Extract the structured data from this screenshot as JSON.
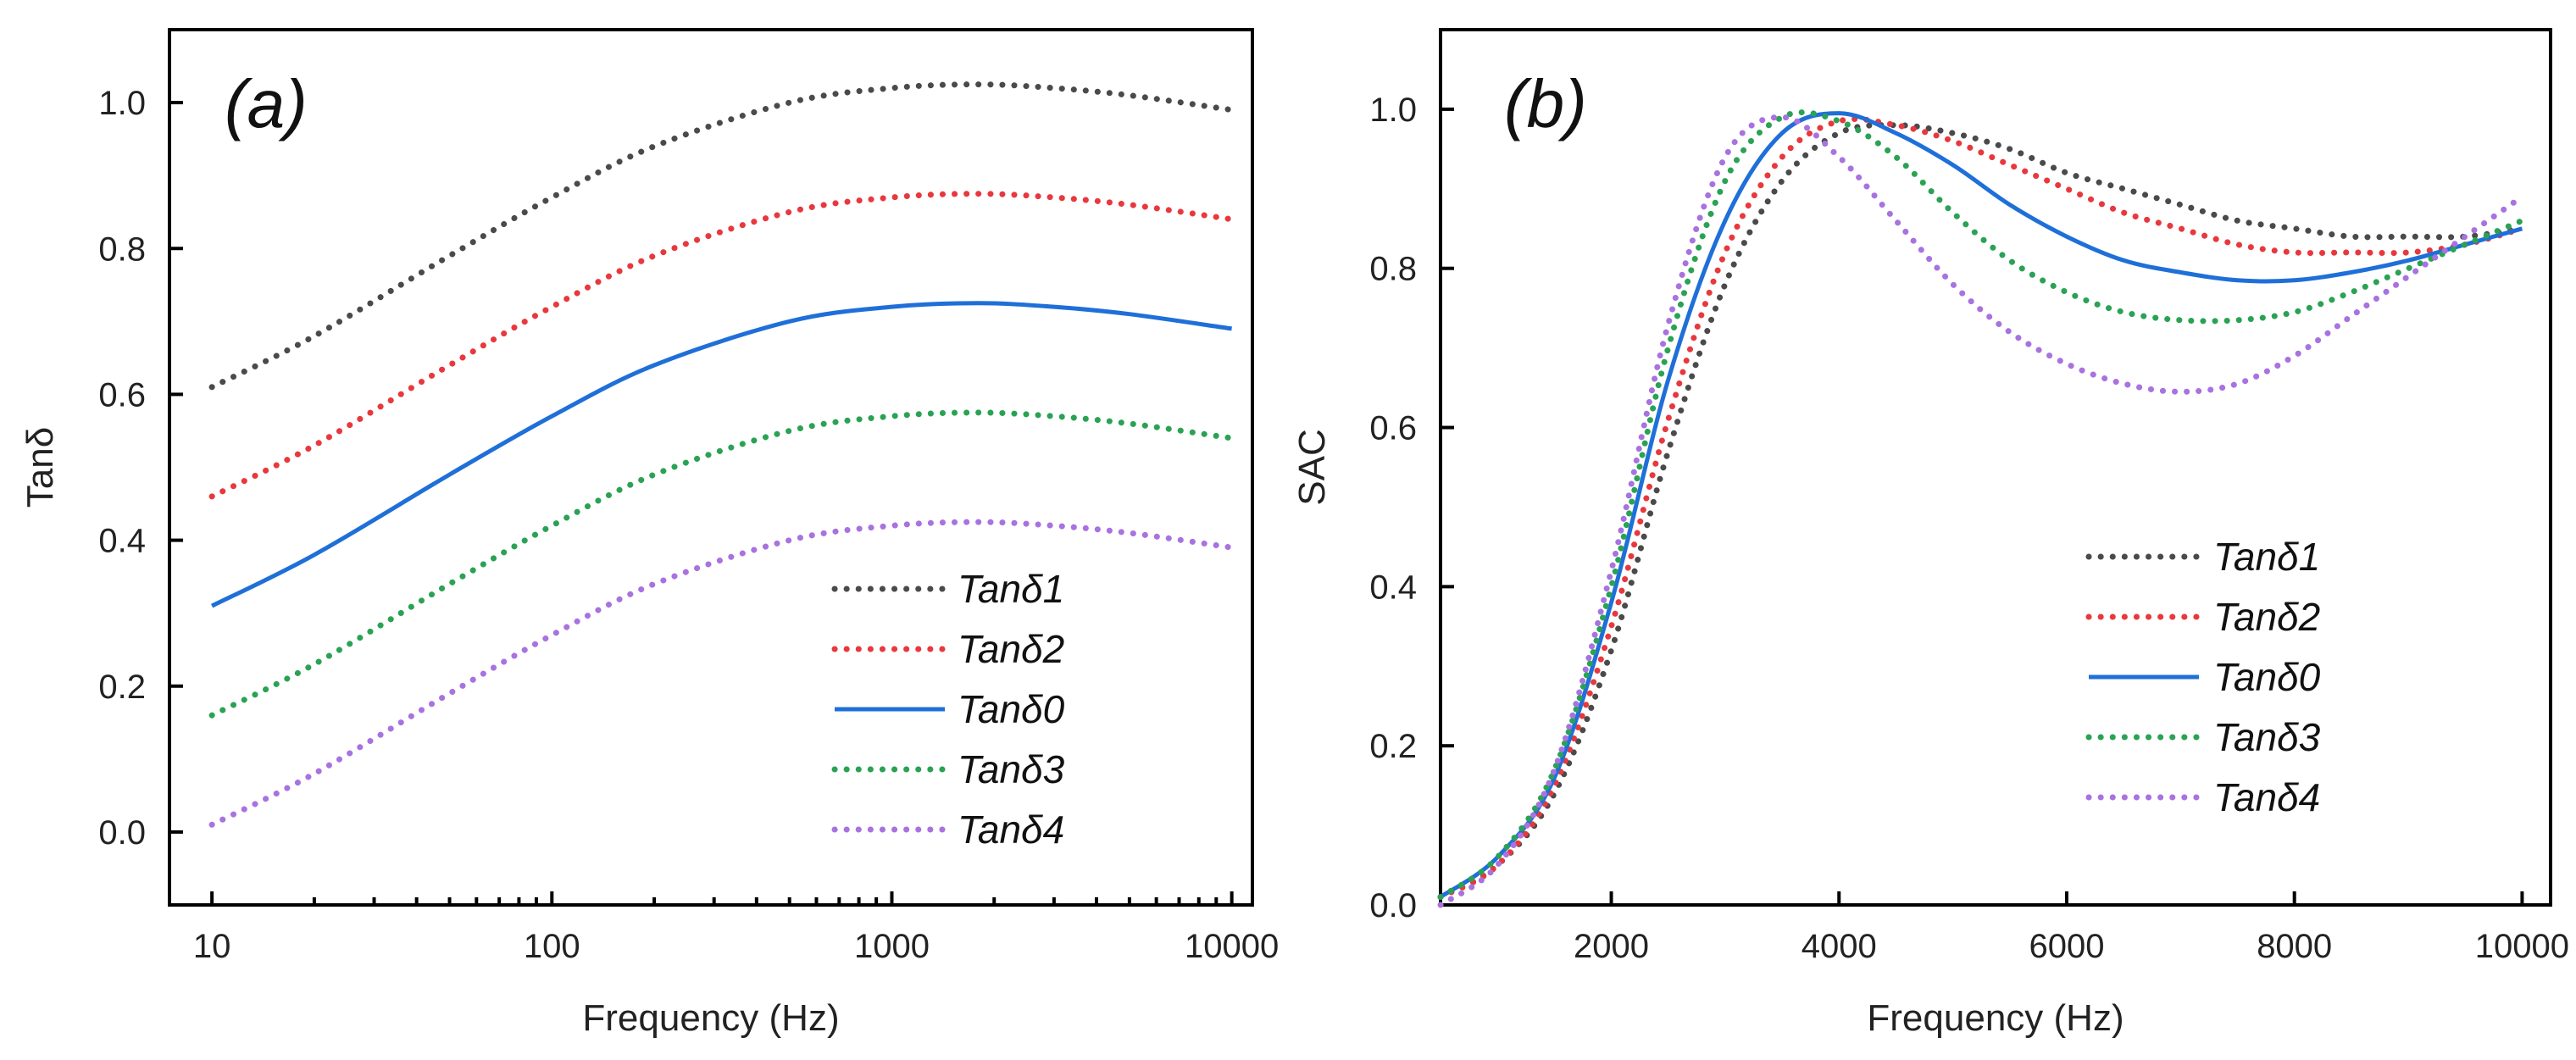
{
  "chart_data": [
    {
      "type": "line",
      "panel_label": "(a)",
      "xlabel": "Frequency (Hz)",
      "ylabel": "Tanδ",
      "xscale": "log",
      "xlim": [
        7.5,
        11500
      ],
      "ylim": [
        -0.1,
        1.1
      ],
      "xticks": [
        10,
        100,
        1000,
        10000
      ],
      "xtick_labels": [
        "10",
        "100",
        "1000",
        "10000"
      ],
      "yticks": [
        0.0,
        0.2,
        0.4,
        0.6,
        0.8,
        1.0
      ],
      "ytick_labels": [
        "0.0",
        "0.2",
        "0.4",
        "0.6",
        "0.8",
        "1.0"
      ],
      "grid": false,
      "legend_position": "bottom-right",
      "series": [
        {
          "name": "Tanδ1",
          "color": "#4a4a4a",
          "style": "dotted",
          "x": [
            10,
            20,
            50,
            100,
            200,
            500,
            1000,
            1800,
            3000,
            5000,
            10000
          ],
          "y": [
            0.61,
            0.68,
            0.79,
            0.87,
            0.94,
            1.0,
            1.02,
            1.025,
            1.02,
            1.01,
            0.99
          ]
        },
        {
          "name": "Tanδ2",
          "color": "#e8383d",
          "style": "dotted",
          "x": [
            10,
            20,
            50,
            100,
            200,
            500,
            1000,
            1800,
            3000,
            5000,
            10000
          ],
          "y": [
            0.46,
            0.53,
            0.64,
            0.72,
            0.79,
            0.85,
            0.87,
            0.875,
            0.87,
            0.86,
            0.84
          ]
        },
        {
          "name": "Tanδ0",
          "color": "#1f6fd9",
          "style": "solid",
          "x": [
            10,
            20,
            50,
            100,
            200,
            500,
            1000,
            1800,
            3000,
            5000,
            10000
          ],
          "y": [
            0.31,
            0.38,
            0.49,
            0.57,
            0.64,
            0.7,
            0.72,
            0.725,
            0.72,
            0.71,
            0.69
          ]
        },
        {
          "name": "Tanδ3",
          "color": "#2aa254",
          "style": "dotted",
          "x": [
            10,
            20,
            50,
            100,
            200,
            500,
            1000,
            1800,
            3000,
            5000,
            10000
          ],
          "y": [
            0.16,
            0.23,
            0.34,
            0.42,
            0.49,
            0.55,
            0.57,
            0.575,
            0.57,
            0.56,
            0.54
          ]
        },
        {
          "name": "Tanδ4",
          "color": "#a872e0",
          "style": "dotted",
          "x": [
            10,
            20,
            50,
            100,
            200,
            500,
            1000,
            1800,
            3000,
            5000,
            10000
          ],
          "y": [
            0.01,
            0.08,
            0.19,
            0.27,
            0.34,
            0.4,
            0.42,
            0.425,
            0.42,
            0.41,
            0.39
          ]
        }
      ]
    },
    {
      "type": "line",
      "panel_label": "(b)",
      "xlabel": "Frequency (Hz)",
      "ylabel": "SAC",
      "xscale": "linear",
      "xlim": [
        500,
        10250
      ],
      "ylim": [
        0.0,
        1.1
      ],
      "xticks": [
        2000,
        4000,
        6000,
        8000,
        10000
      ],
      "xtick_labels": [
        "2000",
        "4000",
        "6000",
        "8000",
        "10000"
      ],
      "yticks": [
        0.0,
        0.2,
        0.4,
        0.6,
        0.8,
        1.0
      ],
      "ytick_labels": [
        "0.0",
        "0.2",
        "0.4",
        "0.6",
        "0.8",
        "1.0"
      ],
      "grid": false,
      "legend_position": "bottom-right",
      "series": [
        {
          "name": "Tanδ1",
          "color": "#4a4a4a",
          "style": "dotted",
          "x": [
            500,
            1000,
            1500,
            2000,
            2500,
            3000,
            3500,
            4000,
            4500,
            5000,
            5500,
            6000,
            6500,
            7000,
            7500,
            8000,
            8500,
            9000,
            9500,
            10000
          ],
          "y": [
            0.01,
            0.05,
            0.14,
            0.32,
            0.57,
            0.78,
            0.91,
            0.97,
            0.98,
            0.97,
            0.95,
            0.92,
            0.9,
            0.88,
            0.86,
            0.85,
            0.84,
            0.84,
            0.84,
            0.85
          ]
        },
        {
          "name": "Tanδ2",
          "color": "#e8383d",
          "style": "dotted",
          "x": [
            500,
            1000,
            1500,
            2000,
            2500,
            3000,
            3500,
            4000,
            4500,
            5000,
            5500,
            6000,
            6500,
            7000,
            7500,
            8000,
            8500,
            9000,
            9500,
            10000
          ],
          "y": [
            0.01,
            0.05,
            0.15,
            0.35,
            0.61,
            0.82,
            0.94,
            0.985,
            0.98,
            0.96,
            0.93,
            0.9,
            0.87,
            0.85,
            0.83,
            0.82,
            0.82,
            0.82,
            0.83,
            0.85
          ]
        },
        {
          "name": "Tanδ0",
          "color": "#1f6fd9",
          "style": "solid",
          "x": [
            500,
            1000,
            1500,
            2000,
            2500,
            3000,
            3500,
            4000,
            4500,
            5000,
            5500,
            6000,
            6500,
            7000,
            7500,
            8000,
            8500,
            9000,
            9500,
            10000
          ],
          "y": [
            0.01,
            0.06,
            0.16,
            0.38,
            0.66,
            0.86,
            0.97,
            0.995,
            0.97,
            0.93,
            0.88,
            0.84,
            0.81,
            0.795,
            0.785,
            0.785,
            0.795,
            0.81,
            0.83,
            0.85
          ]
        },
        {
          "name": "Tanδ3",
          "color": "#2aa254",
          "style": "dotted",
          "x": [
            500,
            1000,
            1500,
            2000,
            2500,
            3000,
            3500,
            4000,
            4500,
            5000,
            5500,
            6000,
            6500,
            7000,
            7500,
            8000,
            8500,
            9000,
            9500,
            10000
          ],
          "y": [
            0.01,
            0.06,
            0.17,
            0.4,
            0.7,
            0.91,
            0.99,
            0.985,
            0.94,
            0.87,
            0.81,
            0.77,
            0.745,
            0.735,
            0.735,
            0.745,
            0.77,
            0.8,
            0.83,
            0.86
          ]
        },
        {
          "name": "Tanδ4",
          "color": "#a872e0",
          "style": "dotted",
          "x": [
            500,
            1000,
            1500,
            2000,
            2500,
            3000,
            3500,
            4000,
            4500,
            5000,
            5500,
            6000,
            6500,
            7000,
            7500,
            8000,
            8500,
            9000,
            9500,
            10000
          ],
          "y": [
            0.0,
            0.05,
            0.17,
            0.42,
            0.73,
            0.94,
            0.99,
            0.94,
            0.86,
            0.78,
            0.72,
            0.68,
            0.655,
            0.645,
            0.655,
            0.69,
            0.74,
            0.79,
            0.84,
            0.89
          ]
        }
      ]
    }
  ]
}
